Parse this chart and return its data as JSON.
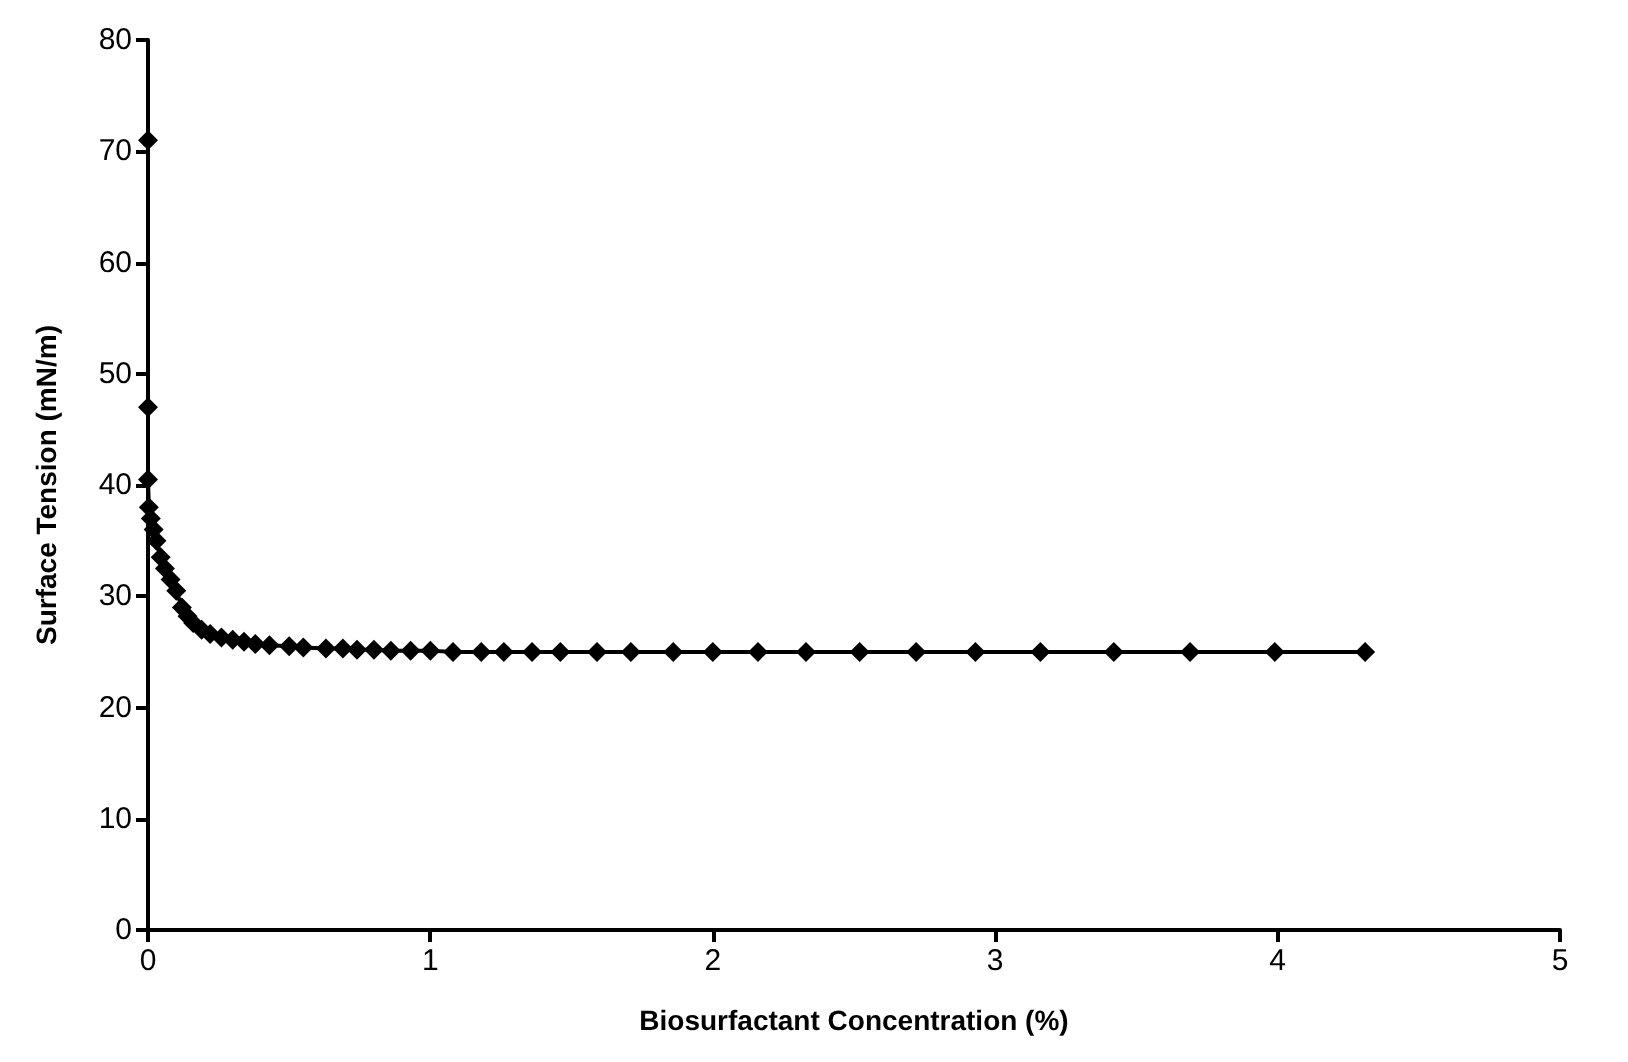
{
  "chart_data": {
    "type": "line",
    "xlabel": "Biosurfactant Concentration (%)",
    "ylabel": "Surface Tension (mN/m)",
    "x": [
      0,
      0,
      0,
      0.003,
      0.01,
      0.02,
      0.03,
      0.045,
      0.06,
      0.08,
      0.1,
      0.12,
      0.14,
      0.16,
      0.19,
      0.22,
      0.26,
      0.3,
      0.34,
      0.38,
      0.43,
      0.5,
      0.55,
      0.63,
      0.69,
      0.74,
      0.8,
      0.86,
      0.93,
      1.0,
      1.08,
      1.18,
      1.26,
      1.36,
      1.46,
      1.59,
      1.71,
      1.86,
      2.0,
      2.16,
      2.33,
      2.52,
      2.72,
      2.93,
      3.16,
      3.42,
      3.69,
      3.99,
      4.31
    ],
    "series": [
      {
        "color": "#000000",
        "values": [
          71,
          47,
          40.5,
          38,
          37,
          36,
          35,
          33.5,
          32.5,
          31.5,
          30.5,
          29,
          28.2,
          27.6,
          27,
          26.6,
          26.3,
          26.1,
          25.9,
          25.7,
          25.6,
          25.5,
          25.4,
          25.3,
          25.3,
          25.2,
          25.2,
          25.1,
          25.1,
          25.1,
          25,
          25,
          25,
          25,
          25,
          25,
          25,
          25,
          25,
          25,
          25,
          25,
          25,
          25,
          25,
          25,
          25,
          25,
          25
        ]
      }
    ],
    "xlim": [
      0,
      5
    ],
    "xticks": [
      0,
      1,
      2,
      3,
      4,
      5
    ],
    "ylim": [
      0,
      80
    ],
    "yticks": [
      0,
      10,
      20,
      30,
      40,
      50,
      60,
      70,
      80
    ],
    "grid": false,
    "marker": "diamond",
    "line_style": "solid"
  }
}
